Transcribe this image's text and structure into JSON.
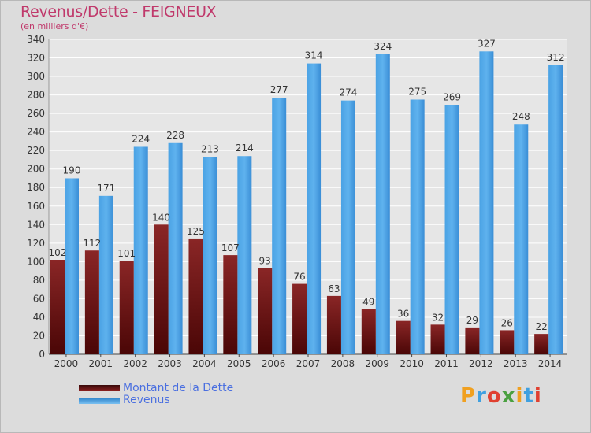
{
  "chart_data": {
    "type": "bar",
    "title": "Revenus/Dette - FEIGNEUX",
    "subtitle": "(en milliers d'€)",
    "categories": [
      "2000",
      "2001",
      "2002",
      "2003",
      "2004",
      "2005",
      "2006",
      "2007",
      "2008",
      "2009",
      "2010",
      "2011",
      "2012",
      "2013",
      "2014"
    ],
    "series": [
      {
        "name": "Montant de la Dette",
        "color": "#7a1b1b",
        "values": [
          102,
          112,
          101,
          140,
          125,
          107,
          93,
          76,
          63,
          49,
          36,
          32,
          29,
          26,
          22
        ]
      },
      {
        "name": "Revenus",
        "color": "#4a9fe0",
        "values": [
          190,
          171,
          224,
          228,
          213,
          214,
          277,
          314,
          274,
          324,
          275,
          269,
          327,
          248,
          312
        ]
      }
    ],
    "ylim": [
      0,
      340
    ],
    "yticks": [
      0,
      20,
      40,
      60,
      80,
      100,
      120,
      140,
      160,
      180,
      200,
      220,
      240,
      260,
      280,
      300,
      320,
      340
    ],
    "grid": true,
    "legend": "bottom-left"
  },
  "logo_text": "Proxiti"
}
